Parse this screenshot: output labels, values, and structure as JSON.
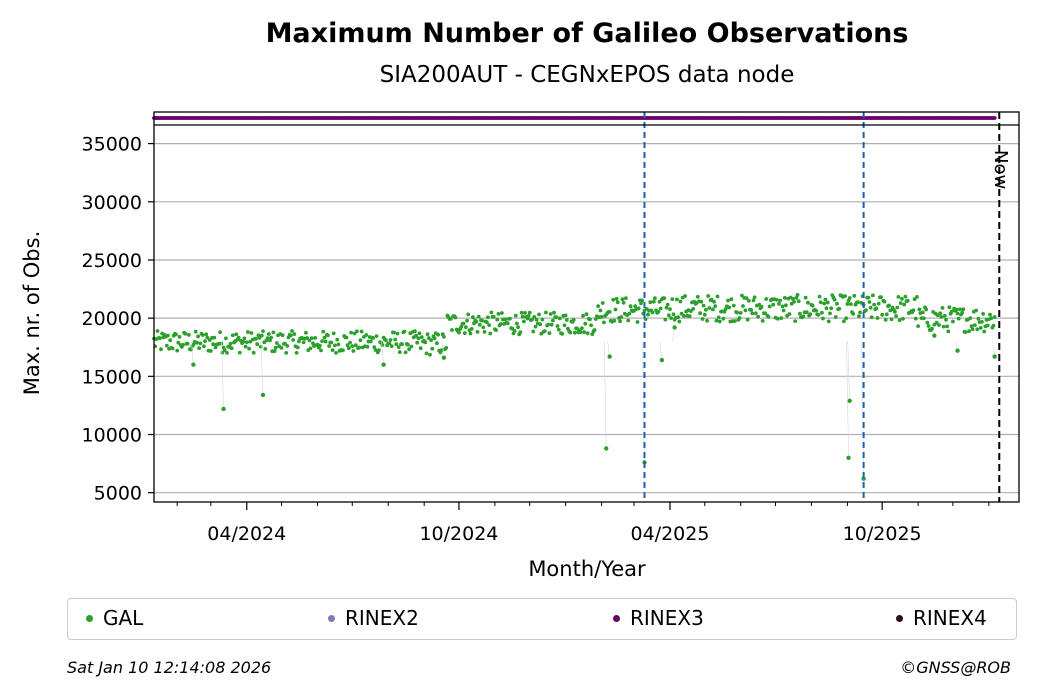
{
  "chart_data": {
    "type": "scatter",
    "title": "Maximum Number of Galileo Observations",
    "subtitle": "SIA200AUT - CEGNxEPOS data node",
    "xlabel": "Month/Year",
    "ylabel": "Max. nr. of Obs.",
    "x_tick_labels": [
      "04/2024",
      "10/2024",
      "04/2025",
      "10/2025"
    ],
    "y_ticks": [
      5000,
      10000,
      15000,
      20000,
      25000,
      30000,
      35000
    ],
    "ylim": [
      4200,
      36600
    ],
    "xlim": [
      "2024-01-12",
      "2026-01-27"
    ],
    "grid": "y",
    "legend_placement": "bottom",
    "now_label": "Now",
    "now_date": "2026-01-10",
    "vlines": [
      "2025-03-10",
      "2025-09-15"
    ],
    "series": [
      {
        "name": "GAL",
        "color": "#2ca02c",
        "segments": [
          {
            "start": "2024-01-12",
            "end": "2024-08-28",
            "low": 17000,
            "high": 18900
          },
          {
            "start": "2024-08-29",
            "end": "2024-09-20",
            "low": 16800,
            "high": 18800
          },
          {
            "start": "2024-09-21",
            "end": "2025-01-28",
            "low": 18600,
            "high": 20500
          },
          {
            "start": "2025-01-29",
            "end": "2025-03-31",
            "low": 19600,
            "high": 21800
          },
          {
            "start": "2025-04-01",
            "end": "2025-10-31",
            "low": 19700,
            "high": 22000
          },
          {
            "start": "2025-11-01",
            "end": "2026-01-06",
            "low": 18800,
            "high": 21000
          }
        ],
        "outliers": [
          {
            "x": "2024-03-12",
            "y": 12200
          },
          {
            "x": "2024-04-15",
            "y": 13400
          },
          {
            "x": "2024-02-15",
            "y": 16000
          },
          {
            "x": "2024-07-28",
            "y": 16000
          },
          {
            "x": "2024-09-18",
            "y": 16600
          },
          {
            "x": "2025-02-05",
            "y": 8800
          },
          {
            "x": "2025-02-08",
            "y": 16700
          },
          {
            "x": "2025-03-10",
            "y": 7600
          },
          {
            "x": "2025-03-25",
            "y": 16400
          },
          {
            "x": "2025-04-05",
            "y": 19200
          },
          {
            "x": "2025-09-02",
            "y": 8000
          },
          {
            "x": "2025-09-03",
            "y": 12900
          },
          {
            "x": "2025-09-15",
            "y": 6200
          },
          {
            "x": "2025-11-15",
            "y": 18500
          },
          {
            "x": "2025-12-05",
            "y": 17200
          },
          {
            "x": "2026-01-06",
            "y": 16700
          }
        ]
      },
      {
        "name": "RINEX2",
        "color": "#7b7bb5",
        "points": []
      },
      {
        "name": "RINEX3",
        "color": "#6a006a",
        "strip": {
          "start": "2024-01-12",
          "end": "2026-01-06"
        }
      },
      {
        "name": "RINEX4",
        "color": "#2a0a1a",
        "points": []
      }
    ]
  },
  "footer": {
    "timestamp": "Sat Jan 10 12:14:08 2026",
    "credit": "©GNSS@ROB"
  }
}
